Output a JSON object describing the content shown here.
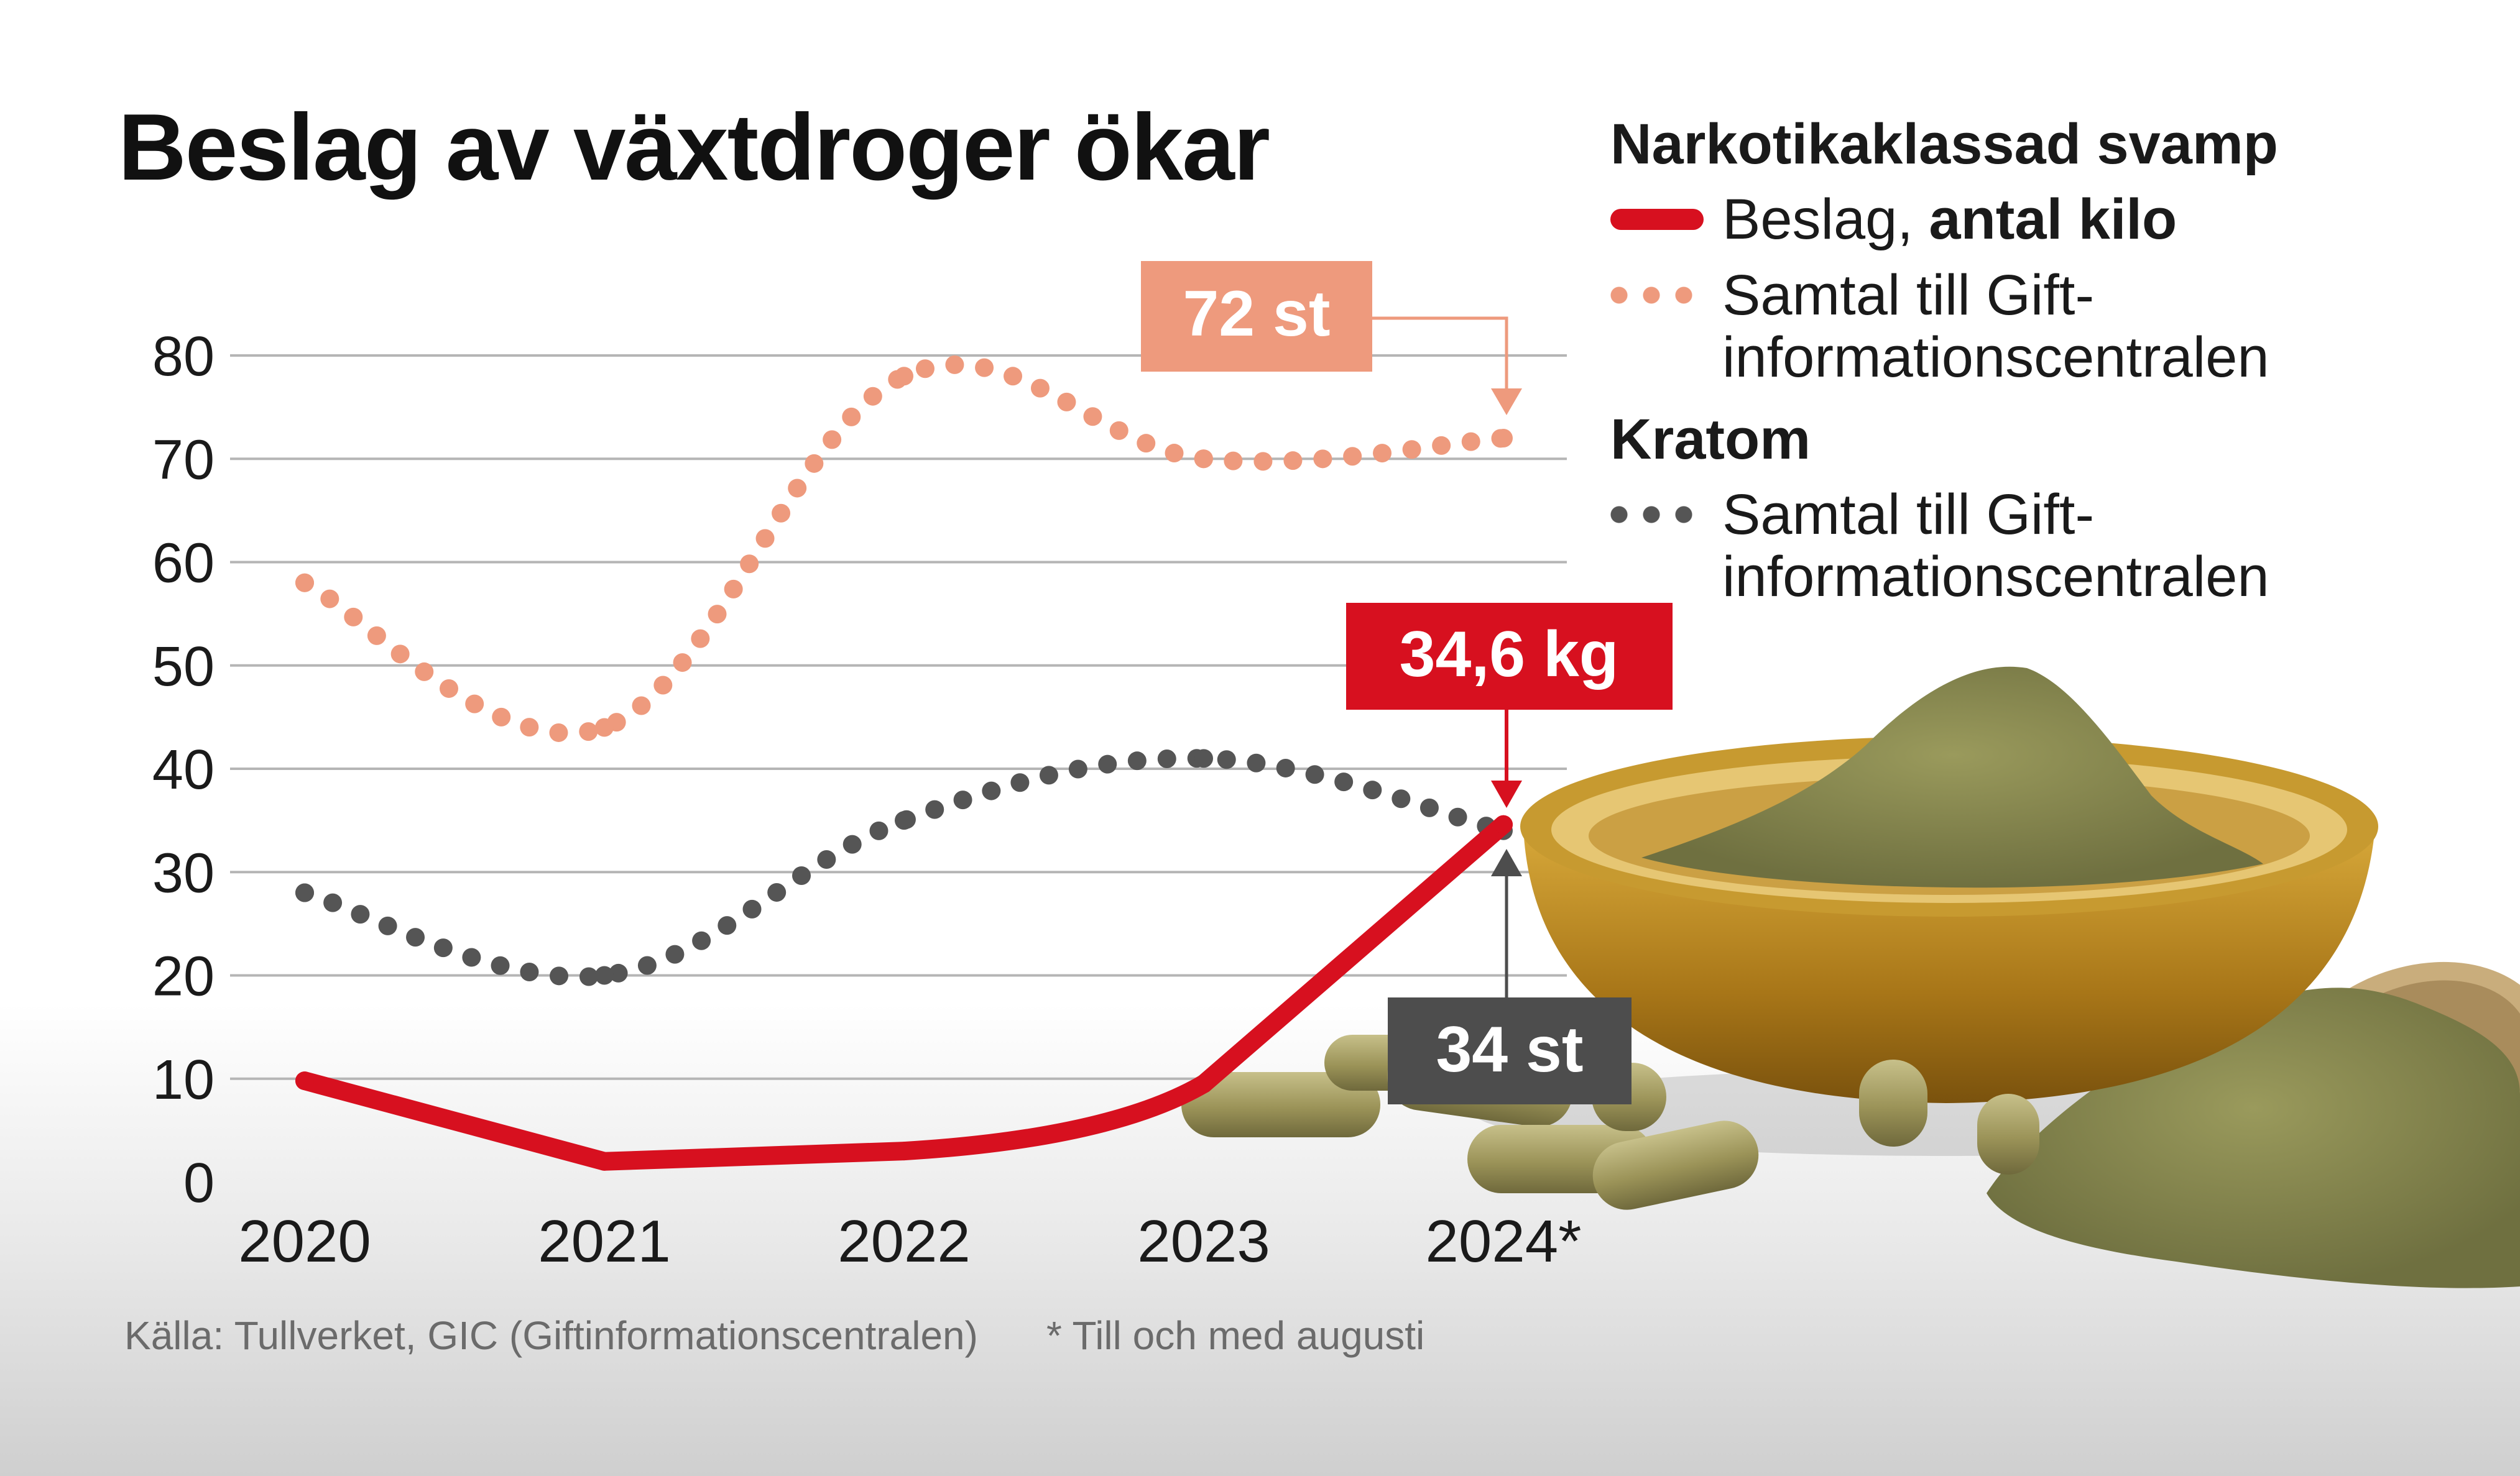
{
  "title": "Beslag av växtdroger ökar",
  "legend": {
    "group1_heading": "Narkotikaklassad svamp",
    "item_seizures_prefix": "Beslag, ",
    "item_seizures_strong": "antal kilo",
    "item_calls_svamp_line1": "Samtal till Gift-",
    "item_calls_svamp_line2": "informationscentralen",
    "group2_heading": "Kratom",
    "item_calls_kratom_line1": "Samtal till Gift-",
    "item_calls_kratom_line2": "informationscentralen"
  },
  "source": "Källa: Tullverket, GIC (Giftinformationscentralen)",
  "footnote": "* Till och med augusti",
  "colors": {
    "seizures": "#d7101f",
    "calls_svamp": "#ee9a7d",
    "calls_kratom": "#555555",
    "label_svamp_bg": "#ee9a7d",
    "label_kratom_bg": "#4d4d4d",
    "grid": "#b5b5b5",
    "bowl": "#b8861c",
    "powder": "#7f8046"
  },
  "chart_data": {
    "type": "line",
    "x": [
      "2020",
      "2021",
      "2022",
      "2023",
      "2024*"
    ],
    "ylim": [
      0,
      80
    ],
    "yticks": [
      0,
      10,
      20,
      30,
      40,
      50,
      60,
      70,
      80
    ],
    "grid": true,
    "series": [
      {
        "name": "Narkotikaklassad svamp – Beslag, antal kilo",
        "style": "solid",
        "values": [
          9.8,
          2,
          3,
          9.5,
          34.6
        ]
      },
      {
        "name": "Narkotikaklassad svamp – Samtal till Giftinformationscentralen",
        "style": "dotted",
        "values": [
          58,
          44,
          78,
          70,
          72
        ]
      },
      {
        "name": "Kratom – Samtal till Giftinformationscentralen",
        "style": "dotted",
        "values": [
          28,
          20,
          35,
          41,
          34
        ]
      }
    ],
    "annotations": [
      {
        "text": "72 st",
        "series": 1,
        "point": 4
      },
      {
        "text": "34,6 kg",
        "series": 0,
        "point": 4
      },
      {
        "text": "34 st",
        "series": 2,
        "point": 4
      }
    ]
  }
}
